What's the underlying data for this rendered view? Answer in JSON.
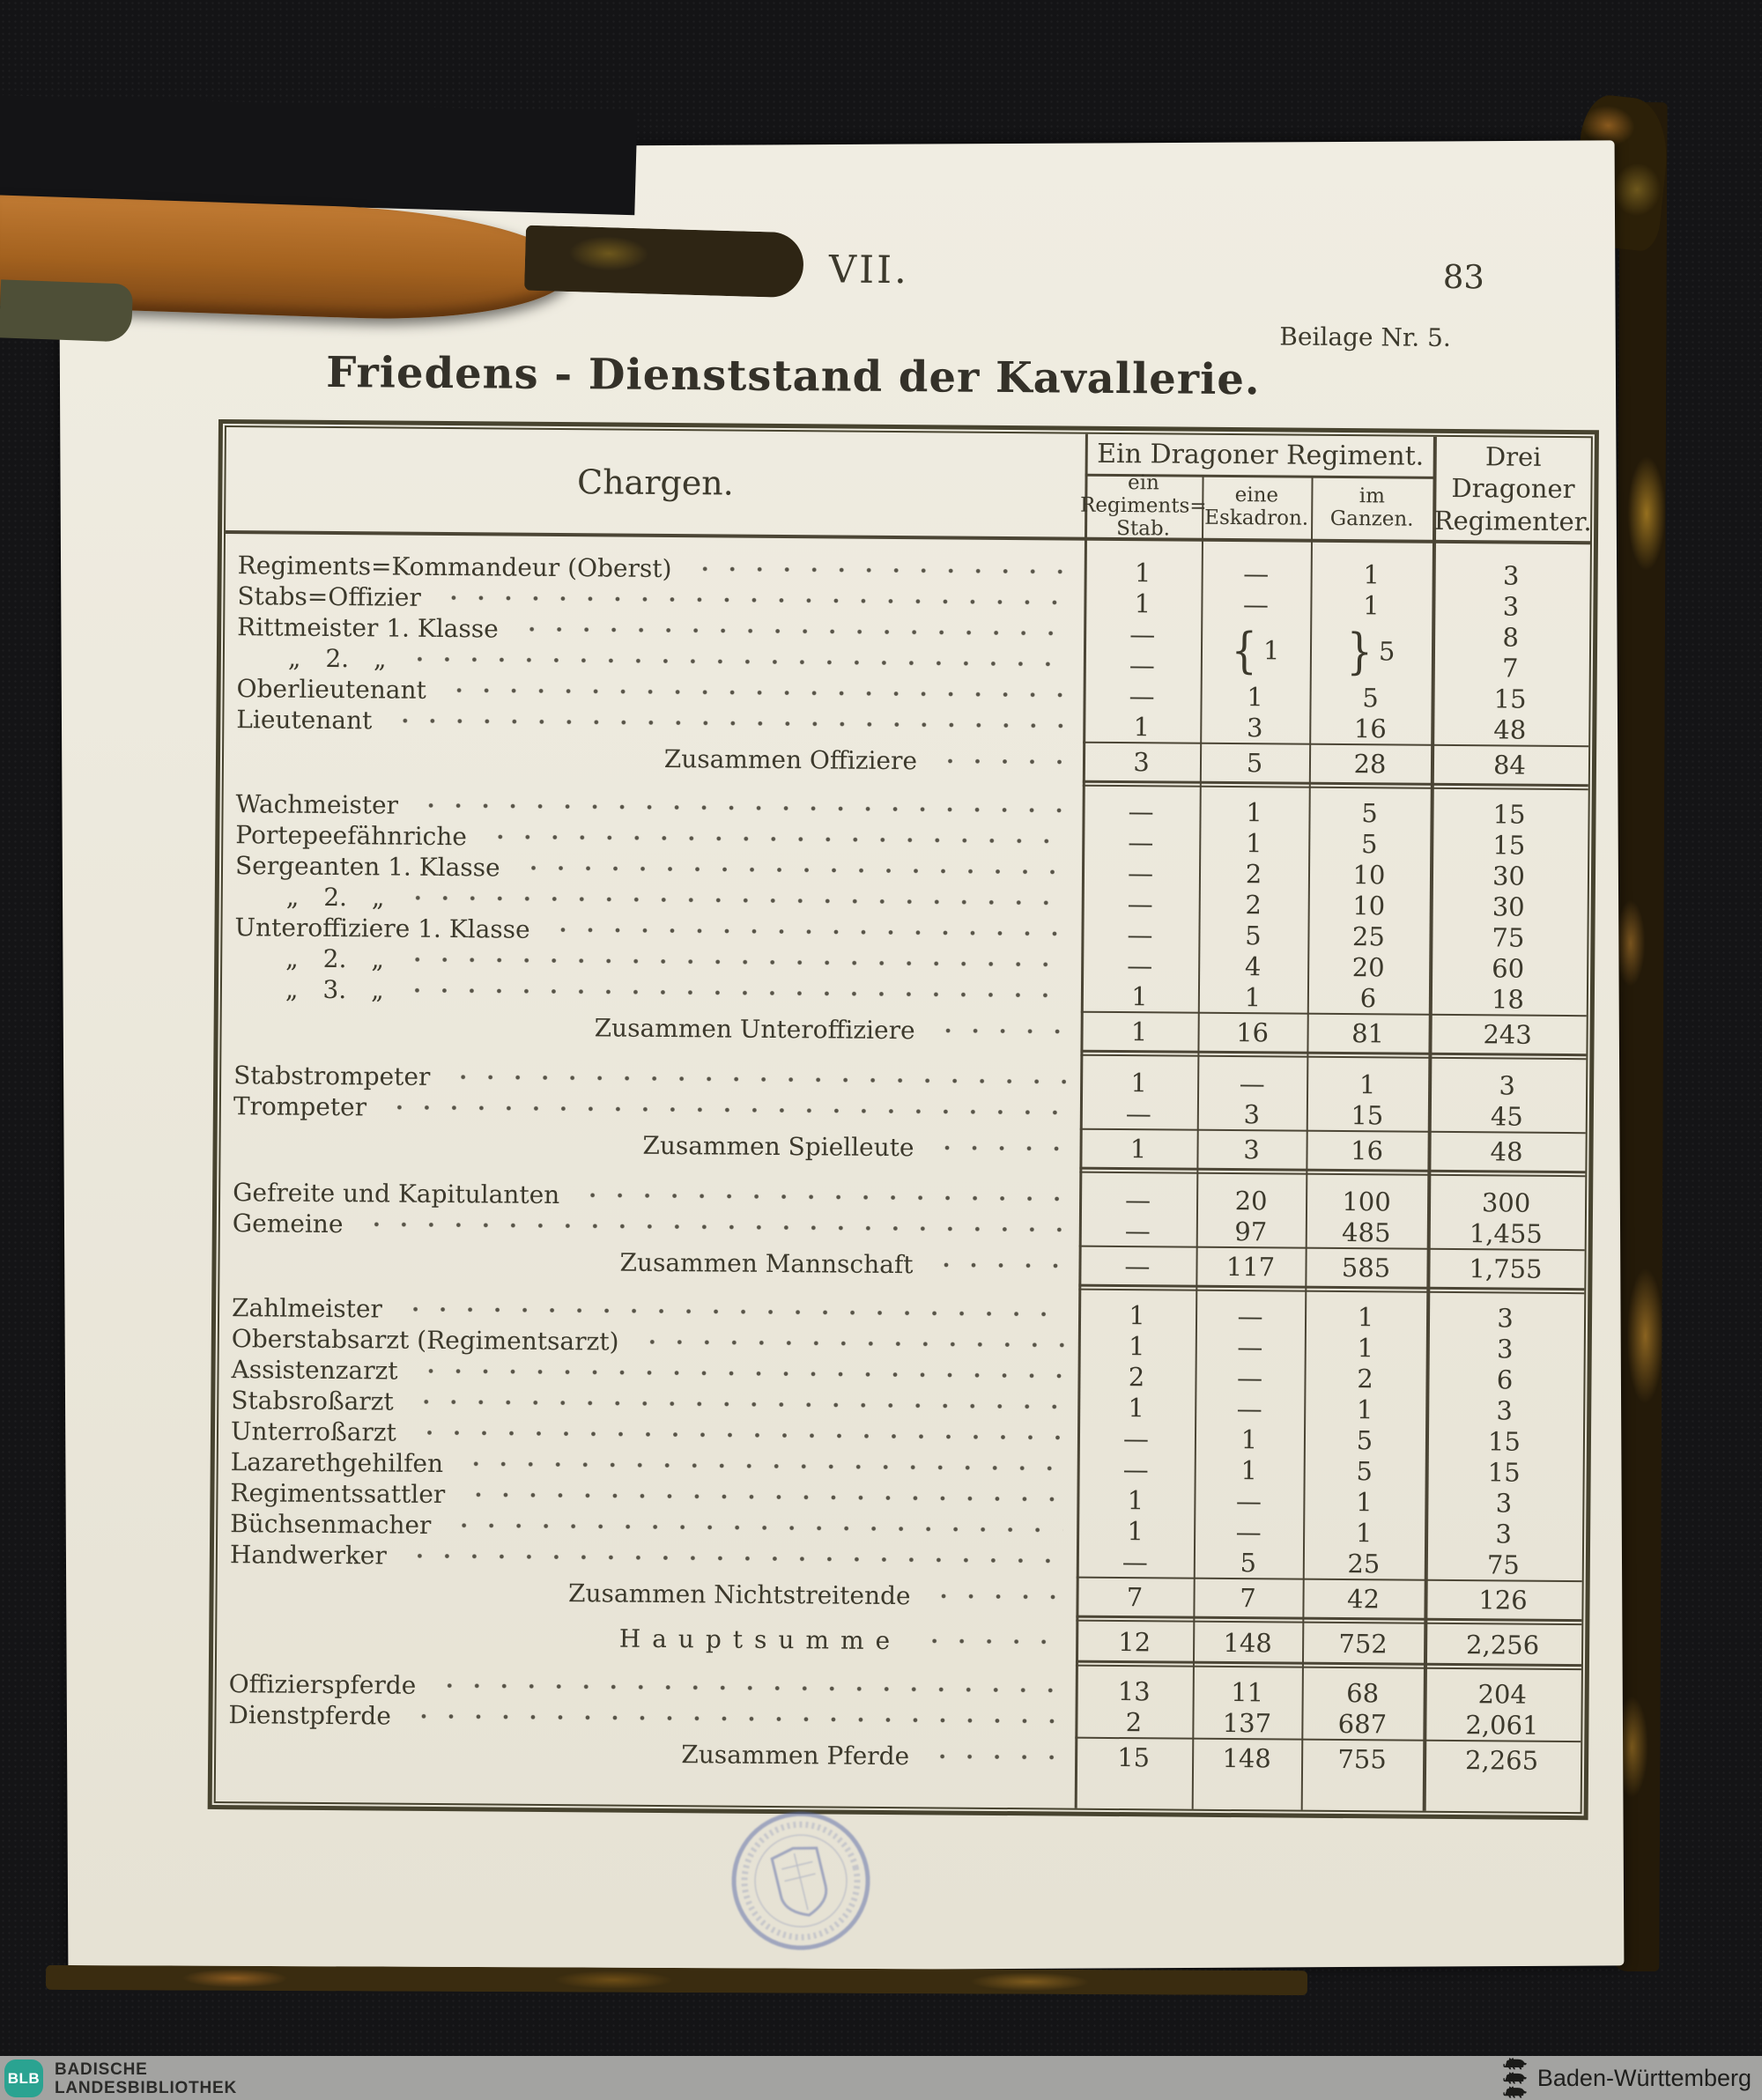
{
  "page": {
    "section_roman": "VII.",
    "page_number": "83",
    "annotation": "Beilage Nr. 5.",
    "title": "Friedens - Dienststand der Kavallerie."
  },
  "table": {
    "chargen_header": "Chargen.",
    "group_header": "Ein Dragoner Regiment.",
    "sub_stab": "ein\nRegiments=\nStab.",
    "sub_eskadron": "eine\nEskadron.",
    "sub_ganzen": "im\nGanzen.",
    "col_drei": "Drei\nDragoner\nRegimenter.",
    "sections": [
      {
        "rows": [
          {
            "label": "Regiments=Kommandeur (Oberst)",
            "cells": [
              "1",
              "—",
              "1",
              "3"
            ]
          },
          {
            "label": "Stabs=Offizier",
            "cells": [
              "1",
              "—",
              "1",
              "3"
            ]
          },
          {
            "label": "Rittmeister 1. Klasse",
            "cells": [
              "—",
              "{1",
              "}5",
              "8"
            ]
          },
          {
            "label": "„ 2. „",
            "indent": true,
            "cells": [
              "—",
              "",
              "",
              "7"
            ]
          },
          {
            "label": "Oberlieutenant",
            "cells": [
              "—",
              "1",
              "5",
              "15"
            ]
          },
          {
            "label": "Lieutenant",
            "cells": [
              "1",
              "3",
              "16",
              "48"
            ]
          }
        ],
        "total": {
          "label": "Zusammen Offiziere",
          "cells": [
            "3",
            "5",
            "28",
            "84"
          ]
        }
      },
      {
        "rows": [
          {
            "label": "Wachmeister",
            "cells": [
              "—",
              "1",
              "5",
              "15"
            ]
          },
          {
            "label": "Portepeefähnriche",
            "cells": [
              "—",
              "1",
              "5",
              "15"
            ]
          },
          {
            "label": "Sergeanten 1. Klasse",
            "cells": [
              "—",
              "2",
              "10",
              "30"
            ]
          },
          {
            "label": "„ 2. „",
            "indent": true,
            "cells": [
              "—",
              "2",
              "10",
              "30"
            ]
          },
          {
            "label": "Unteroffiziere 1. Klasse",
            "cells": [
              "—",
              "5",
              "25",
              "75"
            ]
          },
          {
            "label": "„ 2. „",
            "indent": true,
            "cells": [
              "—",
              "4",
              "20",
              "60"
            ]
          },
          {
            "label": "„ 3. „",
            "indent": true,
            "cells": [
              "1",
              "1",
              "6",
              "18"
            ]
          }
        ],
        "total": {
          "label": "Zusammen Unteroffiziere",
          "cells": [
            "1",
            "16",
            "81",
            "243"
          ]
        }
      },
      {
        "rows": [
          {
            "label": "Stabstrompeter",
            "cells": [
              "1",
              "—",
              "1",
              "3"
            ]
          },
          {
            "label": "Trompeter",
            "cells": [
              "—",
              "3",
              "15",
              "45"
            ]
          }
        ],
        "total": {
          "label": "Zusammen Spielleute",
          "cells": [
            "1",
            "3",
            "16",
            "48"
          ]
        }
      },
      {
        "rows": [
          {
            "label": "Gefreite und Kapitulanten",
            "cells": [
              "—",
              "20",
              "100",
              "300"
            ]
          },
          {
            "label": "Gemeine",
            "cells": [
              "—",
              "97",
              "485",
              "1,455"
            ]
          }
        ],
        "total": {
          "label": "Zusammen Mannschaft",
          "cells": [
            "—",
            "117",
            "585",
            "1,755"
          ]
        }
      },
      {
        "rows": [
          {
            "label": "Zahlmeister",
            "cells": [
              "1",
              "—",
              "1",
              "3"
            ]
          },
          {
            "label": "Oberstabsarzt (Regimentsarzt)",
            "cells": [
              "1",
              "—",
              "1",
              "3"
            ]
          },
          {
            "label": "Assistenzarzt",
            "cells": [
              "2",
              "—",
              "2",
              "6"
            ]
          },
          {
            "label": "Stabsroßarzt",
            "cells": [
              "1",
              "—",
              "1",
              "3"
            ]
          },
          {
            "label": "Unterroßarzt",
            "cells": [
              "—",
              "1",
              "5",
              "15"
            ]
          },
          {
            "label": "Lazarethgehilfen",
            "cells": [
              "—",
              "1",
              "5",
              "15"
            ]
          },
          {
            "label": "Regimentssattler",
            "cells": [
              "1",
              "—",
              "1",
              "3"
            ]
          },
          {
            "label": "Büchsenmacher",
            "cells": [
              "1",
              "—",
              "1",
              "3"
            ]
          },
          {
            "label": "Handwerker",
            "cells": [
              "—",
              "5",
              "25",
              "75"
            ]
          }
        ],
        "total": {
          "label": "Zusammen Nichtstreitende",
          "cells": [
            "7",
            "7",
            "42",
            "126"
          ]
        }
      },
      {
        "rows": [],
        "grand": true,
        "no_thin": true,
        "total": {
          "label": "Hauptsumme",
          "cells": [
            "12",
            "148",
            "752",
            "2,256"
          ]
        }
      },
      {
        "rows": [
          {
            "label": "Offizierspferde",
            "cells": [
              "13",
              "11",
              "68",
              "204"
            ]
          },
          {
            "label": "Dienstpferde",
            "cells": [
              "2",
              "137",
              "687",
              "2,061"
            ]
          }
        ],
        "no_heavy": true,
        "total": {
          "label": "Zusammen Pferde",
          "cells": [
            "15",
            "148",
            "755",
            "2,265"
          ]
        }
      }
    ]
  },
  "footer": {
    "logo_text": "BLB",
    "logo_color": "#2aa391",
    "library_line1": "BADISCHE",
    "library_line2": "LANDESBIBLIOTHEK",
    "region": "Baden-Württemberg"
  }
}
